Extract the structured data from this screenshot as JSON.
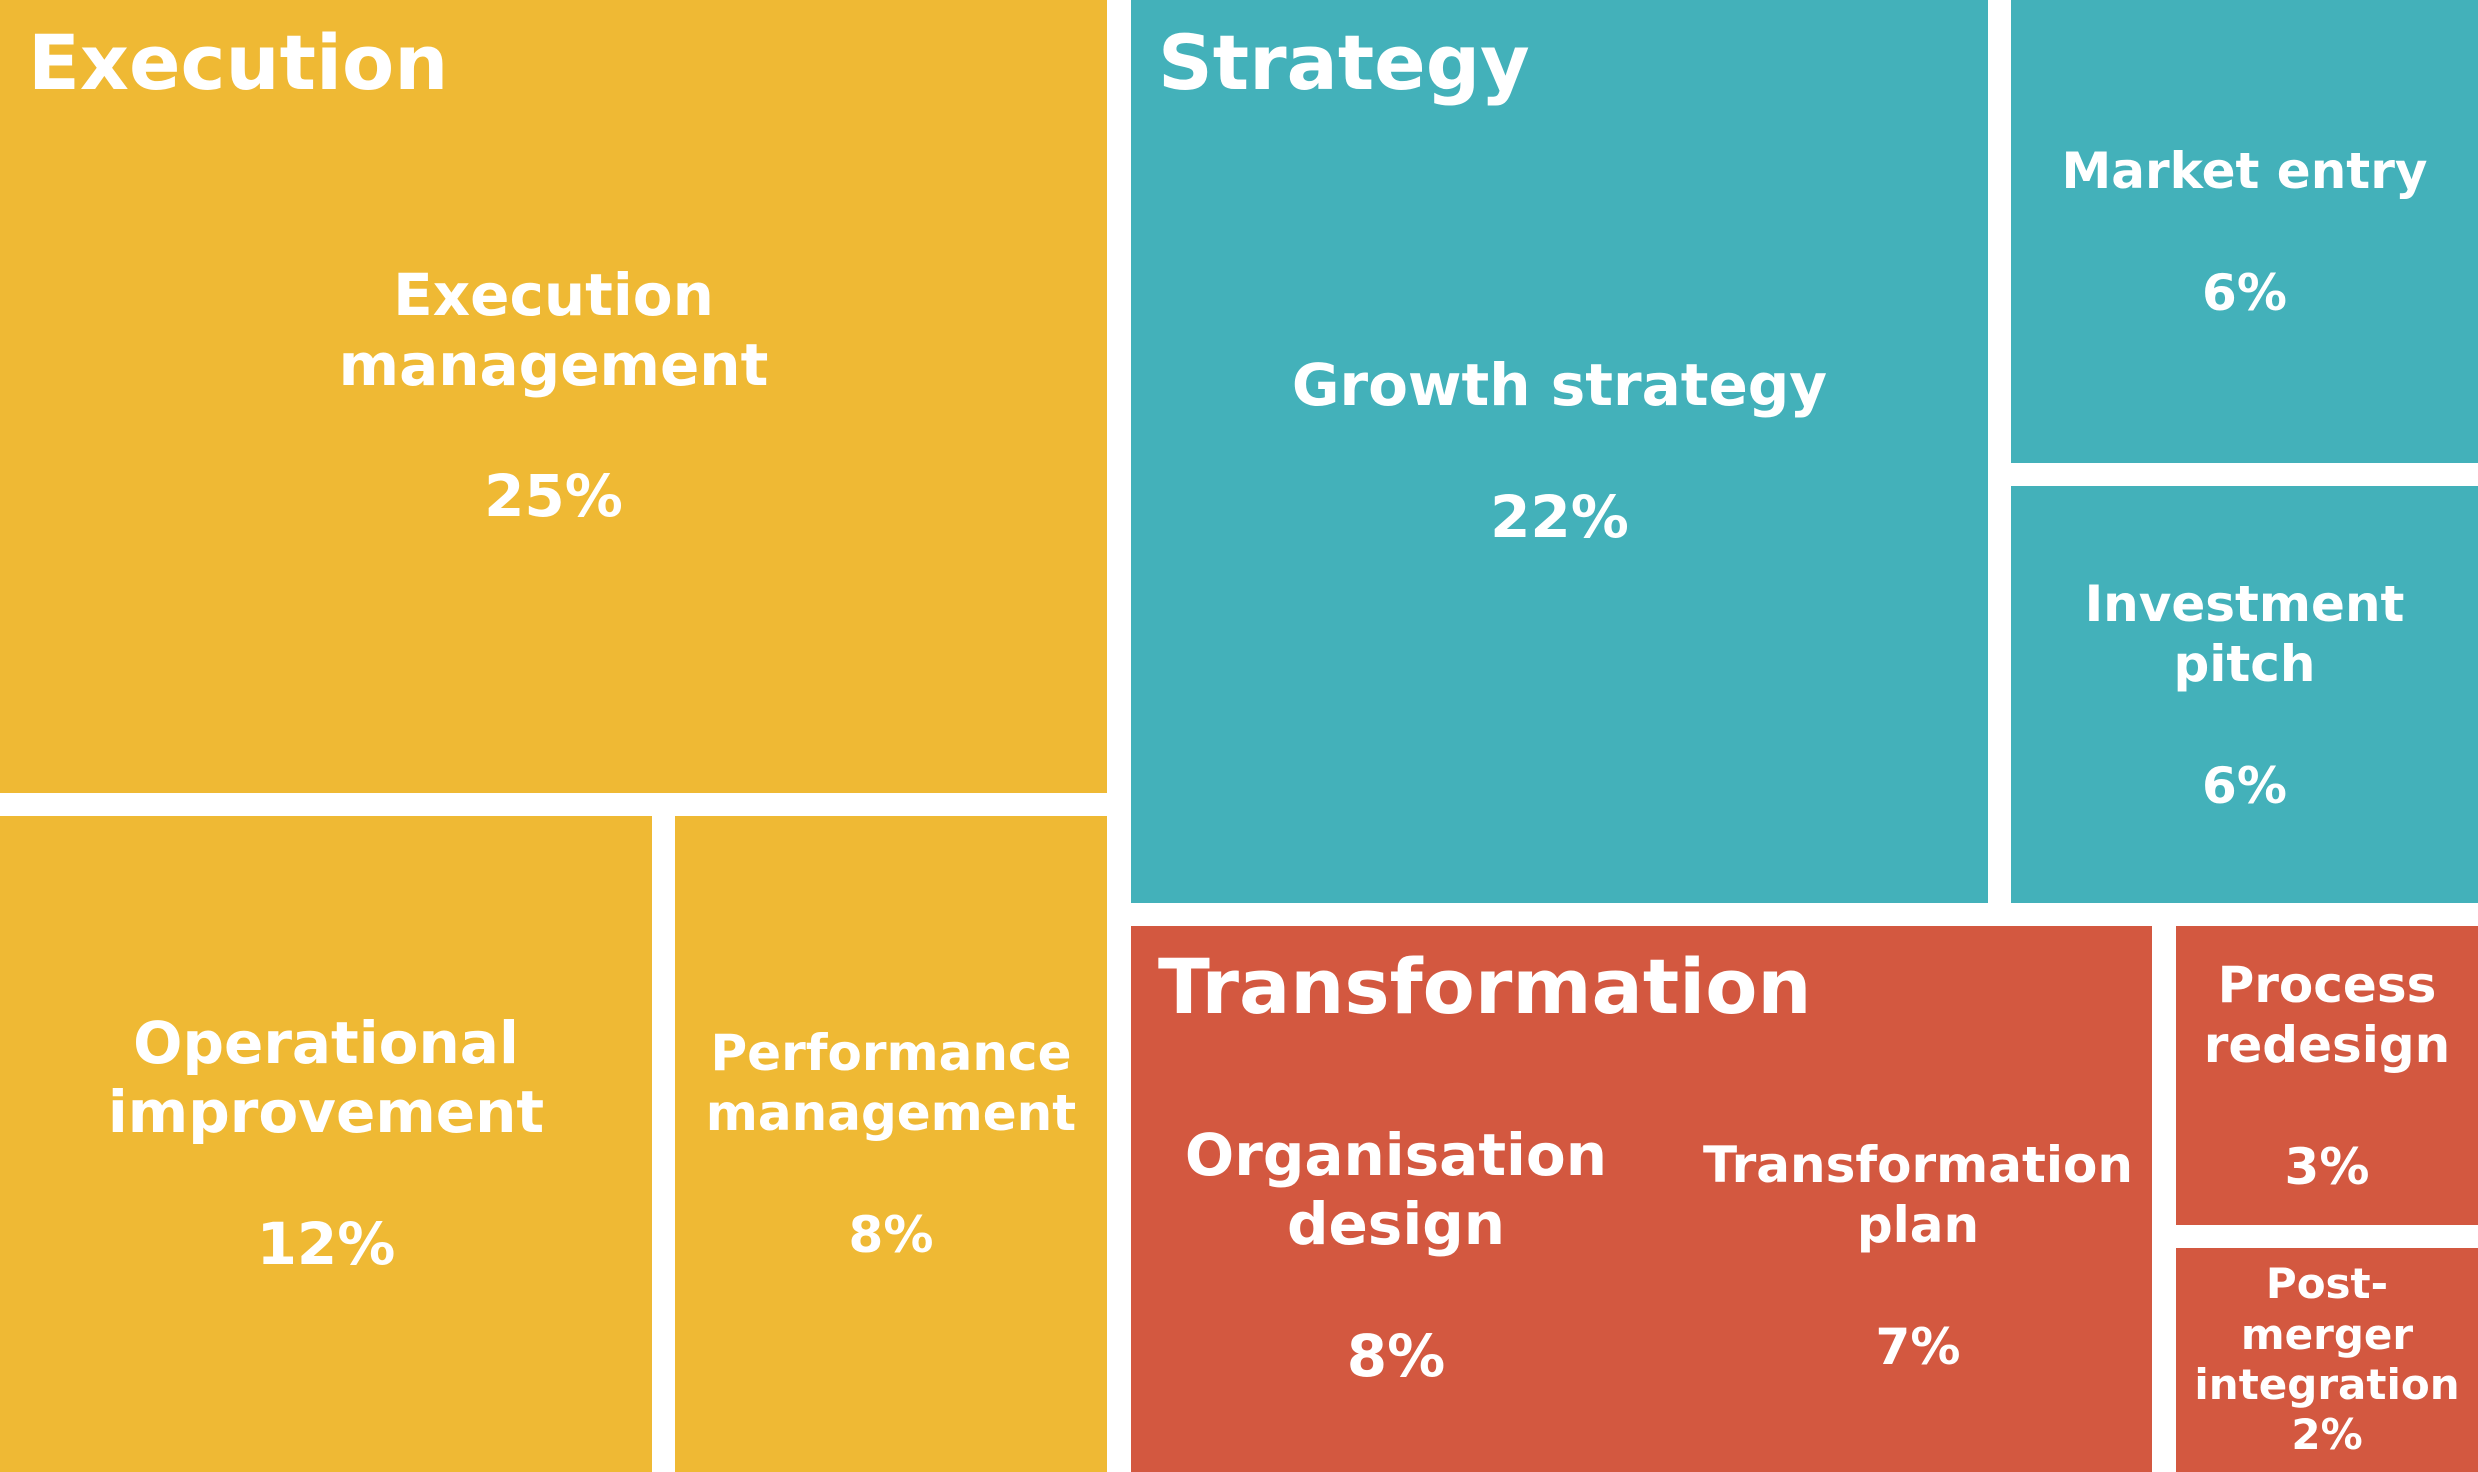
{
  "chart_data": {
    "type": "treemap",
    "groups": [
      {
        "name": "Execution",
        "color": "#EFB934",
        "items": [
          {
            "label": "Execution management",
            "value": 25,
            "value_text": "25%"
          },
          {
            "label": "Operational improvement",
            "value": 12,
            "value_text": "12%"
          },
          {
            "label": "Performance management",
            "value": 8,
            "value_text": "8%"
          }
        ]
      },
      {
        "name": "Strategy",
        "color": "#43B1BA",
        "items": [
          {
            "label": "Growth strategy",
            "value": 22,
            "value_text": "22%"
          },
          {
            "label": "Market entry",
            "value": 6,
            "value_text": "6%"
          },
          {
            "label": "Investment pitch",
            "value": 6,
            "value_text": "6%"
          }
        ]
      },
      {
        "name": "Transformation",
        "color": "#D35840",
        "items": [
          {
            "label": "Organisation design",
            "value": 8,
            "value_text": "8%"
          },
          {
            "label": "Transformation plan",
            "value": 7,
            "value_text": "7%"
          },
          {
            "label": "Process redesign",
            "value": 3,
            "value_text": "3%"
          },
          {
            "label": "Post-merger integration",
            "value": 2,
            "value_text": "2%"
          }
        ]
      }
    ]
  }
}
